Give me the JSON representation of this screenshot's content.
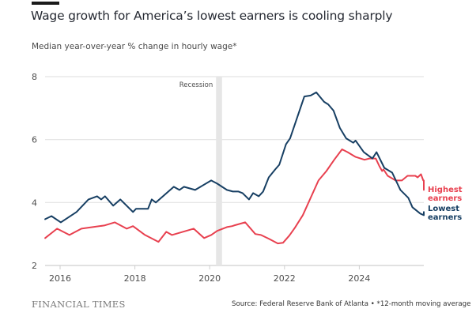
{
  "header": {
    "title": "Wage growth for America’s lowest earners is cooling sharply",
    "subtitle": "Median year-over-year % change in hourly wage*"
  },
  "footer": {
    "brand": "FINANCIAL TIMES",
    "source": "Source: Federal Reserve Bank of Atlanta • *12-month moving average"
  },
  "chart_data": {
    "type": "line",
    "title": "Wage growth for America’s lowest earners is cooling sharply",
    "subtitle": "Median year-over-year % change in hourly wage*",
    "xlabel": "",
    "ylabel": "",
    "xlim": [
      2015.6,
      2025.67
    ],
    "ylim": [
      2,
      8
    ],
    "x_ticks": [
      2016,
      2018,
      2020,
      2022,
      2024
    ],
    "x_tick_labels": [
      "2016",
      "2018",
      "2020",
      "2022",
      "2024"
    ],
    "y_ticks": [
      2,
      4,
      6,
      8
    ],
    "y_tick_labels": [
      "2",
      "4",
      "6",
      "8"
    ],
    "grid": "horizontal",
    "legend": "direct labels at right end of lines",
    "annotations": [
      {
        "type": "shaded-band",
        "label": "Recession",
        "x_start": 2020.17,
        "x_end": 2020.33
      }
    ],
    "series": [
      {
        "name": "Highest earners",
        "label_lines": [
          "Highest",
          "earners"
        ],
        "color": "#e8404f",
        "points": [
          [
            2015.6,
            2.87
          ],
          [
            2015.92,
            3.17
          ],
          [
            2016.25,
            2.97
          ],
          [
            2016.57,
            3.17
          ],
          [
            2017.18,
            3.27
          ],
          [
            2017.46,
            3.37
          ],
          [
            2017.78,
            3.17
          ],
          [
            2017.95,
            3.25
          ],
          [
            2018.27,
            2.97
          ],
          [
            2018.63,
            2.75
          ],
          [
            2018.84,
            3.07
          ],
          [
            2018.99,
            2.97
          ],
          [
            2019.57,
            3.17
          ],
          [
            2019.85,
            2.87
          ],
          [
            2020.04,
            2.97
          ],
          [
            2020.2,
            3.1
          ],
          [
            2020.46,
            3.22
          ],
          [
            2020.6,
            3.25
          ],
          [
            2020.65,
            3.27
          ],
          [
            2020.95,
            3.37
          ],
          [
            2021.22,
            3.0
          ],
          [
            2021.37,
            2.97
          ],
          [
            2021.58,
            2.85
          ],
          [
            2021.82,
            2.7
          ],
          [
            2021.96,
            2.72
          ],
          [
            2022.13,
            2.95
          ],
          [
            2022.28,
            3.2
          ],
          [
            2022.49,
            3.6
          ],
          [
            2022.91,
            4.7
          ],
          [
            2023.12,
            5.0
          ],
          [
            2023.33,
            5.36
          ],
          [
            2023.54,
            5.69
          ],
          [
            2023.69,
            5.6
          ],
          [
            2023.9,
            5.45
          ],
          [
            2024.14,
            5.36
          ],
          [
            2024.27,
            5.4
          ],
          [
            2024.44,
            5.4
          ],
          [
            2024.54,
            5.15
          ],
          [
            2024.61,
            5.0
          ],
          [
            2024.65,
            5.05
          ],
          [
            2024.76,
            4.85
          ],
          [
            2024.97,
            4.7
          ],
          [
            2025.14,
            4.7
          ],
          [
            2025.29,
            4.85
          ],
          [
            2025.5,
            4.85
          ],
          [
            2025.56,
            4.8
          ],
          [
            2025.65,
            4.9
          ],
          [
            2025.71,
            4.7
          ],
          [
            2025.92,
            4.7
          ],
          [
            2026.04,
            4.4
          ]
        ]
      },
      {
        "name": "Lowest earners",
        "label_lines": [
          "Lowest",
          "earners"
        ],
        "color": "#173f63",
        "points": [
          [
            2015.6,
            3.47
          ],
          [
            2015.77,
            3.57
          ],
          [
            2016.02,
            3.37
          ],
          [
            2016.44,
            3.7
          ],
          [
            2016.76,
            4.1
          ],
          [
            2016.99,
            4.2
          ],
          [
            2017.1,
            4.1
          ],
          [
            2017.2,
            4.2
          ],
          [
            2017.42,
            3.9
          ],
          [
            2017.61,
            4.1
          ],
          [
            2017.95,
            3.7
          ],
          [
            2018.03,
            3.8
          ],
          [
            2018.35,
            3.8
          ],
          [
            2018.45,
            4.1
          ],
          [
            2018.56,
            4.0
          ],
          [
            2019.04,
            4.5
          ],
          [
            2019.19,
            4.4
          ],
          [
            2019.31,
            4.5
          ],
          [
            2019.61,
            4.4
          ],
          [
            2020.04,
            4.7
          ],
          [
            2020.2,
            4.6
          ],
          [
            2020.46,
            4.4
          ],
          [
            2020.62,
            4.35
          ],
          [
            2020.77,
            4.35
          ],
          [
            2020.88,
            4.3
          ],
          [
            2021.05,
            4.1
          ],
          [
            2021.16,
            4.3
          ],
          [
            2021.31,
            4.2
          ],
          [
            2021.43,
            4.35
          ],
          [
            2021.58,
            4.8
          ],
          [
            2021.75,
            5.05
          ],
          [
            2021.86,
            5.2
          ],
          [
            2022.04,
            5.85
          ],
          [
            2022.15,
            6.04
          ],
          [
            2022.53,
            7.37
          ],
          [
            2022.7,
            7.4
          ],
          [
            2022.85,
            7.5
          ],
          [
            2023.06,
            7.2
          ],
          [
            2023.17,
            7.12
          ],
          [
            2023.31,
            6.92
          ],
          [
            2023.48,
            6.37
          ],
          [
            2023.65,
            6.04
          ],
          [
            2023.84,
            5.9
          ],
          [
            2023.9,
            5.97
          ],
          [
            2024.12,
            5.6
          ],
          [
            2024.35,
            5.4
          ],
          [
            2024.46,
            5.6
          ],
          [
            2024.67,
            5.1
          ],
          [
            2024.88,
            4.95
          ],
          [
            2025.1,
            4.4
          ],
          [
            2025.31,
            4.15
          ],
          [
            2025.42,
            3.85
          ],
          [
            2025.63,
            3.65
          ],
          [
            2025.78,
            3.6
          ],
          [
            2025.86,
            3.7
          ]
        ]
      }
    ]
  }
}
